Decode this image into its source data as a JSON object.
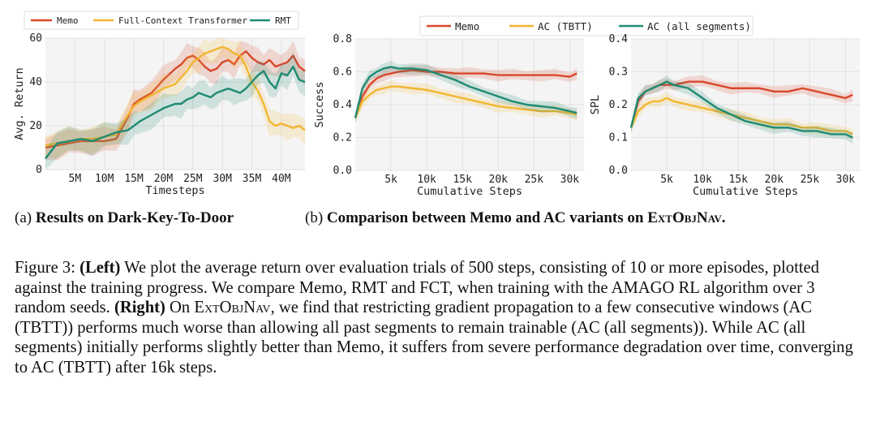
{
  "colors": {
    "memo": "#d9472b",
    "fct": "#f2b631",
    "rmt": "#1f8a73",
    "ac_tbtt": "#f2b631",
    "ac_all": "#1f8a73"
  },
  "chart_data": [
    {
      "type": "line",
      "id": "dark-key",
      "title": "",
      "xlabel": "Timesteps",
      "ylabel": "Avg. Return",
      "xlim": [
        0,
        44
      ],
      "ylim": [
        0,
        60
      ],
      "xticks": [
        5,
        10,
        15,
        20,
        25,
        30,
        35,
        40
      ],
      "xtick_labels": [
        "5M",
        "10M",
        "15M",
        "20M",
        "25M",
        "30M",
        "35M",
        "40M"
      ],
      "yticks": [
        0,
        20,
        40,
        60
      ],
      "ytick_labels": [
        "0",
        "20",
        "40",
        "60"
      ],
      "legend": [
        "Memo",
        "Full-Context Transformer",
        "RMT"
      ],
      "series": [
        {
          "name": "Memo",
          "color": "#d9472b",
          "x": [
            0,
            2,
            4,
            6,
            8,
            10,
            12,
            14,
            15,
            16,
            18,
            20,
            22,
            23,
            24,
            25,
            26,
            27,
            28,
            29,
            30,
            31,
            32,
            33,
            34,
            35,
            36,
            37,
            38,
            39,
            40,
            41,
            42,
            43,
            44
          ],
          "y": [
            10,
            11,
            12,
            13,
            13,
            13,
            14,
            24,
            30,
            32,
            35,
            41,
            46,
            48,
            51,
            52,
            50,
            47,
            45,
            46,
            49,
            50,
            48,
            52,
            54,
            51,
            49,
            48,
            50,
            47,
            48,
            49,
            52,
            47,
            45
          ]
        },
        {
          "name": "Full-Context Transformer",
          "color": "#f2b631",
          "x": [
            0,
            2,
            4,
            6,
            8,
            10,
            12,
            14,
            15,
            16,
            18,
            20,
            22,
            23,
            24,
            25,
            26,
            27,
            28,
            29,
            30,
            31,
            32,
            33,
            34,
            35,
            36,
            37,
            38,
            39,
            40,
            41,
            42,
            43,
            44
          ],
          "y": [
            11,
            12,
            13,
            14,
            14,
            15,
            16,
            25,
            29,
            31,
            34,
            37,
            39,
            42,
            45,
            49,
            51,
            53,
            54,
            55,
            56,
            55,
            53,
            52,
            47,
            40,
            36,
            30,
            22,
            20,
            21,
            20,
            19,
            20,
            18
          ]
        },
        {
          "name": "RMT",
          "color": "#1f8a73",
          "x": [
            0,
            2,
            4,
            6,
            8,
            10,
            12,
            14,
            15,
            16,
            18,
            20,
            22,
            23,
            24,
            25,
            26,
            27,
            28,
            29,
            30,
            31,
            32,
            33,
            34,
            35,
            36,
            37,
            38,
            39,
            40,
            41,
            42,
            43,
            44
          ],
          "y": [
            5,
            12,
            13,
            14,
            13,
            15,
            17,
            18,
            20,
            22,
            25,
            28,
            30,
            30,
            32,
            33,
            35,
            34,
            33,
            35,
            36,
            37,
            36,
            35,
            37,
            40,
            43,
            45,
            40,
            37,
            44,
            43,
            47,
            41,
            40
          ]
        }
      ]
    },
    {
      "type": "line",
      "id": "success",
      "xlabel": "Cumulative Steps",
      "ylabel": "Success",
      "xlim": [
        0,
        32
      ],
      "ylim": [
        0,
        0.8
      ],
      "xticks": [
        5,
        10,
        15,
        20,
        25,
        30
      ],
      "xtick_labels": [
        "5k",
        "10k",
        "15k",
        "20k",
        "25k",
        "30k"
      ],
      "yticks": [
        0,
        0.2,
        0.4,
        0.6,
        0.8
      ],
      "ytick_labels": [
        "0.0",
        "0.2",
        "0.4",
        "0.6",
        "0.8"
      ],
      "legend": [
        "Memo",
        "AC (TBTT)",
        "AC (all segments)"
      ],
      "series": [
        {
          "name": "Memo",
          "color": "#d9472b",
          "x": [
            0,
            1,
            2,
            3,
            4,
            5,
            6,
            8,
            10,
            12,
            14,
            16,
            18,
            20,
            22,
            24,
            26,
            28,
            30,
            31
          ],
          "y": [
            0.32,
            0.45,
            0.52,
            0.56,
            0.58,
            0.59,
            0.6,
            0.61,
            0.6,
            0.6,
            0.59,
            0.59,
            0.59,
            0.58,
            0.58,
            0.58,
            0.58,
            0.58,
            0.57,
            0.59
          ]
        },
        {
          "name": "AC (TBTT)",
          "color": "#f2b631",
          "x": [
            0,
            1,
            2,
            3,
            4,
            5,
            6,
            8,
            10,
            12,
            14,
            16,
            18,
            20,
            22,
            24,
            26,
            28,
            30,
            31
          ],
          "y": [
            0.32,
            0.42,
            0.46,
            0.49,
            0.5,
            0.51,
            0.51,
            0.5,
            0.49,
            0.47,
            0.45,
            0.43,
            0.41,
            0.39,
            0.38,
            0.37,
            0.36,
            0.36,
            0.35,
            0.34
          ]
        },
        {
          "name": "AC (all segments)",
          "color": "#1f8a73",
          "x": [
            0,
            1,
            2,
            3,
            4,
            5,
            6,
            8,
            10,
            12,
            14,
            16,
            18,
            20,
            22,
            24,
            26,
            28,
            30,
            31
          ],
          "y": [
            0.32,
            0.5,
            0.57,
            0.6,
            0.62,
            0.63,
            0.62,
            0.62,
            0.61,
            0.58,
            0.55,
            0.51,
            0.48,
            0.45,
            0.42,
            0.4,
            0.39,
            0.38,
            0.36,
            0.35
          ]
        }
      ]
    },
    {
      "type": "line",
      "id": "spl",
      "xlabel": "Cumulative Steps",
      "ylabel": "SPL",
      "xlim": [
        0,
        32
      ],
      "ylim": [
        0,
        0.4
      ],
      "xticks": [
        5,
        10,
        15,
        20,
        25,
        30
      ],
      "xtick_labels": [
        "5k",
        "10k",
        "15k",
        "20k",
        "25k",
        "30k"
      ],
      "yticks": [
        0,
        0.1,
        0.2,
        0.3,
        0.4
      ],
      "ytick_labels": [
        "0.0",
        "0.1",
        "0.2",
        "0.3",
        "0.4"
      ],
      "series": [
        {
          "name": "Memo",
          "color": "#d9472b",
          "x": [
            0,
            1,
            2,
            3,
            4,
            5,
            6,
            8,
            10,
            12,
            14,
            16,
            18,
            20,
            22,
            24,
            26,
            28,
            30,
            31
          ],
          "y": [
            0.13,
            0.21,
            0.24,
            0.25,
            0.26,
            0.26,
            0.26,
            0.27,
            0.27,
            0.26,
            0.25,
            0.25,
            0.25,
            0.24,
            0.24,
            0.25,
            0.24,
            0.23,
            0.22,
            0.23
          ]
        },
        {
          "name": "AC (TBTT)",
          "color": "#f2b631",
          "x": [
            0,
            1,
            2,
            3,
            4,
            5,
            6,
            8,
            10,
            12,
            14,
            16,
            18,
            20,
            22,
            24,
            26,
            28,
            30,
            31
          ],
          "y": [
            0.13,
            0.18,
            0.2,
            0.21,
            0.21,
            0.22,
            0.21,
            0.2,
            0.19,
            0.18,
            0.17,
            0.16,
            0.15,
            0.14,
            0.14,
            0.13,
            0.13,
            0.12,
            0.12,
            0.11
          ]
        },
        {
          "name": "AC (all segments)",
          "color": "#1f8a73",
          "x": [
            0,
            1,
            2,
            3,
            4,
            5,
            6,
            8,
            10,
            12,
            14,
            16,
            18,
            20,
            22,
            24,
            26,
            28,
            30,
            31
          ],
          "y": [
            0.13,
            0.22,
            0.24,
            0.25,
            0.26,
            0.27,
            0.26,
            0.25,
            0.22,
            0.19,
            0.17,
            0.15,
            0.14,
            0.13,
            0.13,
            0.12,
            0.12,
            0.11,
            0.11,
            0.1
          ]
        }
      ]
    }
  ],
  "subcaption_a": {
    "prefix": "(a) ",
    "bold": "Results on Dark-Key-To-Door"
  },
  "subcaption_b": {
    "prefix": "(b) ",
    "bold": "Comparison between Memo and AC variants on ",
    "env": "ExtObjNav",
    "suffix": "."
  },
  "caption": {
    "fig_label": "Figure 3: ",
    "left_tag": "(Left)",
    "left_text": " We plot the average return over evaluation trials of 500 steps, consisting of 10 or more episodes, plotted against the training progress.  We compare Memo, RMT and FCT, when training with the AMAGO RL algorithm over 3 random seeds. ",
    "right_tag": "(Right)",
    "right_text_1": " On ",
    "env": "ExtObjNav",
    "right_text_2": ", we find that restricting gradient propagation to a few consecutive windows (AC (TBTT)) performs much worse than allowing all past segments to remain trainable (AC (all segments)). While AC (all segments) initially performs slightly better than Memo, it suffers from severe performance degradation over time, converging to AC (TBTT) after 16k steps."
  }
}
